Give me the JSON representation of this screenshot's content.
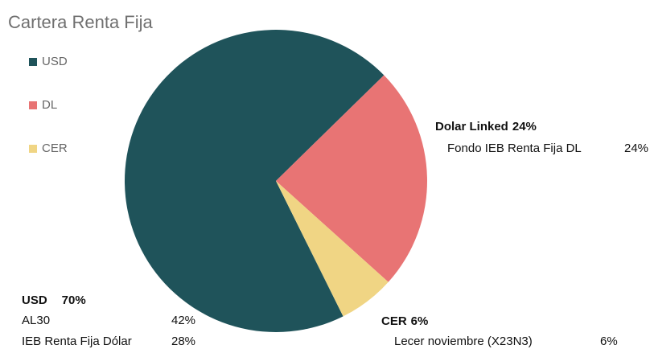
{
  "chart_data": {
    "type": "pie",
    "title": "Cartera Renta Fija",
    "categories": [
      "USD",
      "DL",
      "CER"
    ],
    "values": [
      70,
      24,
      6
    ],
    "colors": [
      "#1f535a",
      "#e87474",
      "#f0d584"
    ],
    "legend": "top-left",
    "annotations": [
      {
        "title": "Dolar Linked",
        "title_value": "24%",
        "items": [
          {
            "name": "Fondo IEB Renta Fija DL",
            "value": "24%"
          }
        ]
      },
      {
        "title": "CER",
        "title_value": "6%",
        "items": [
          {
            "name": "Lecer noviembre (X23N3)",
            "value": "6%"
          }
        ]
      },
      {
        "title": "USD",
        "title_value": "70%",
        "items": [
          {
            "name": "AL30",
            "value": "42%"
          },
          {
            "name": "IEB Renta Fija Dólar",
            "value": "28%"
          }
        ]
      }
    ]
  }
}
